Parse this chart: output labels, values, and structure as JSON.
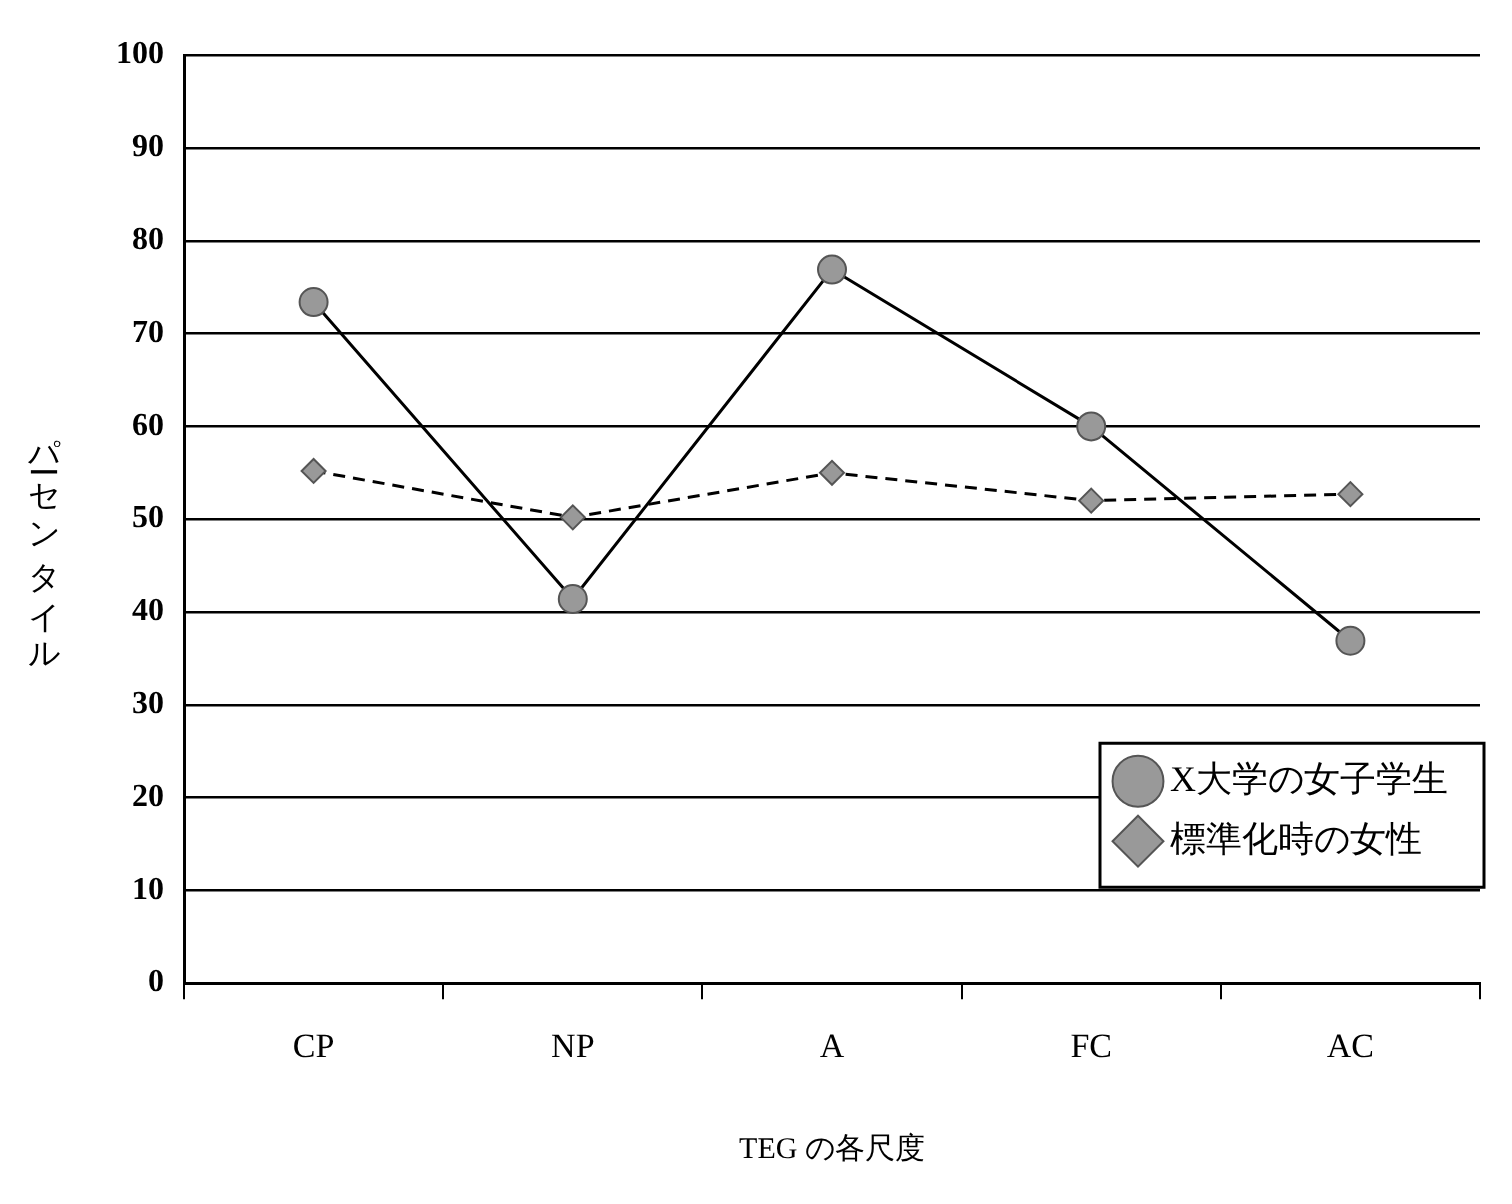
{
  "chart_data": {
    "type": "line",
    "xlabel": "TEG の各尺度",
    "ylabel": "パーセンタイル",
    "categories": [
      "CP",
      "NP",
      "A",
      "FC",
      "AC"
    ],
    "series": [
      {
        "name": "X大学の女子学生",
        "color": "#000000",
        "values": [
          73.4,
          41.4,
          76.9,
          60,
          36.9
        ],
        "marker": "circle",
        "line_style": "solid"
      },
      {
        "name": "標準化時の女性",
        "color": "#000000",
        "values": [
          55.2,
          50.2,
          55,
          52,
          52.7
        ],
        "marker": "diamond",
        "line_style": "dashed"
      }
    ],
    "ylim": [
      0,
      100
    ],
    "yticks": [
      0,
      10,
      20,
      30,
      40,
      50,
      60,
      70,
      80,
      90,
      100
    ],
    "grid": "y",
    "legend": "bottom right"
  }
}
